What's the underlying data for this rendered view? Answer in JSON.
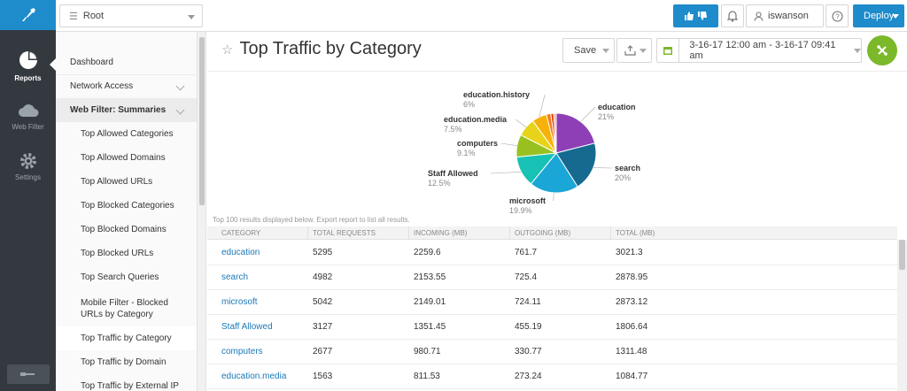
{
  "rail": {
    "items": [
      {
        "label": "Reports",
        "icon": "pie-chart-icon",
        "active": true
      },
      {
        "label": "Web Filter",
        "icon": "cloud-icon",
        "active": false
      },
      {
        "label": "Settings",
        "icon": "gear-icon",
        "active": false
      }
    ]
  },
  "topbar": {
    "root_select": "Root",
    "user": "iswanson",
    "deploy_label": "Deploy"
  },
  "nav": {
    "items": [
      {
        "label": "Dashboard"
      },
      {
        "label": "Network Access"
      },
      {
        "label": "Web Filter: Summaries"
      },
      {
        "label": "Top Allowed Categories"
      },
      {
        "label": "Top Allowed Domains"
      },
      {
        "label": "Top Allowed URLs"
      },
      {
        "label": "Top Blocked Categories"
      },
      {
        "label": "Top Blocked Domains"
      },
      {
        "label": "Top Blocked URLs"
      },
      {
        "label": "Top Search Queries"
      },
      {
        "label": "Mobile Filter - Blocked URLs by Category"
      },
      {
        "label": "Top Traffic by Category"
      },
      {
        "label": "Top Traffic by Domain"
      },
      {
        "label": "Top Traffic by External IP"
      }
    ]
  },
  "header": {
    "title": "Top Traffic by Category",
    "save_label": "Save",
    "date_range": "3-16-17 12:00 am - 3-16-17 09:41 am"
  },
  "chart_data": {
    "type": "pie",
    "slices": [
      {
        "label": "education",
        "value": 21,
        "pct_label": "21%",
        "color": "#8e3fb5"
      },
      {
        "label": "search",
        "value": 20,
        "pct_label": "20%",
        "color": "#166a8f"
      },
      {
        "label": "microsoft",
        "value": 19.9,
        "pct_label": "19.9%",
        "color": "#1aa6d6"
      },
      {
        "label": "Staff Allowed",
        "value": 12.5,
        "pct_label": "12.5%",
        "color": "#17c1b4"
      },
      {
        "label": "computers",
        "value": 9.1,
        "pct_label": "9.1%",
        "color": "#98c11f"
      },
      {
        "label": "education.media",
        "value": 7.5,
        "pct_label": "7.5%",
        "color": "#e7d41a"
      },
      {
        "label": "education.history",
        "value": 6,
        "pct_label": "6%",
        "color": "#f7b10b"
      },
      {
        "label": "",
        "value": 1.8,
        "pct_label": "",
        "color": "#f07d18"
      },
      {
        "label": "",
        "value": 1.2,
        "pct_label": "",
        "color": "#e8431a"
      },
      {
        "label": "",
        "value": 1.0,
        "pct_label": "",
        "color": "#f2a59a"
      }
    ]
  },
  "table": {
    "note": "Top 100 results displayed below. Export report to list all results.",
    "columns": [
      "CATEGORY",
      "TOTAL REQUESTS",
      "INCOMING (MB)",
      "OUTGOING (MB)",
      "TOTAL (MB)"
    ],
    "rows": [
      [
        "education",
        "5295",
        "2259.6",
        "761.7",
        "3021.3"
      ],
      [
        "search",
        "4982",
        "2153.55",
        "725.4",
        "2878.95"
      ],
      [
        "microsoft",
        "5042",
        "2149.01",
        "724.11",
        "2873.12"
      ],
      [
        "Staff Allowed",
        "3127",
        "1351.45",
        "455.19",
        "1806.64"
      ],
      [
        "computers",
        "2677",
        "980.71",
        "330.77",
        "1311.48"
      ],
      [
        "education.media",
        "1563",
        "811.53",
        "273.24",
        "1084.77"
      ]
    ]
  }
}
